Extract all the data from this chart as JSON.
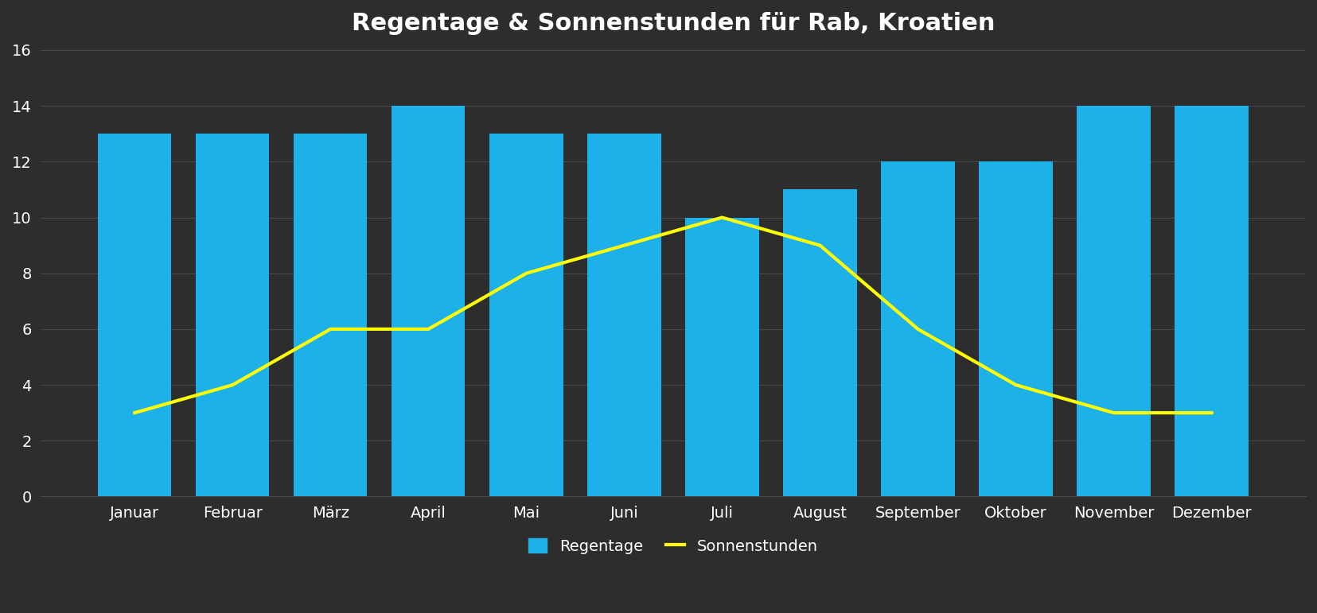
{
  "title": "Regentage & Sonnenstunden für Rab, Kroatien",
  "months": [
    "Januar",
    "Februar",
    "März",
    "April",
    "Mai",
    "Juni",
    "Juli",
    "August",
    "September",
    "Oktober",
    "November",
    "Dezember"
  ],
  "regentage": [
    13,
    13,
    13,
    14,
    13,
    13,
    10,
    11,
    12,
    12,
    14,
    14
  ],
  "sonnenstunden": [
    3,
    4,
    6,
    6,
    8,
    9,
    10,
    9,
    6,
    4,
    3,
    3
  ],
  "bar_color": "#1EB0E8",
  "line_color": "#FFFF00",
  "background_color": "#2d2d2d",
  "axes_background_color": "#2d2d2d",
  "text_color": "#ffffff",
  "grid_color": "#4a4a4a",
  "title_fontsize": 22,
  "tick_fontsize": 14,
  "legend_fontsize": 14,
  "ylim": [
    0,
    16
  ],
  "yticks": [
    0,
    2,
    4,
    6,
    8,
    10,
    12,
    14,
    16
  ],
  "line_width": 3,
  "bar_width": 0.75
}
